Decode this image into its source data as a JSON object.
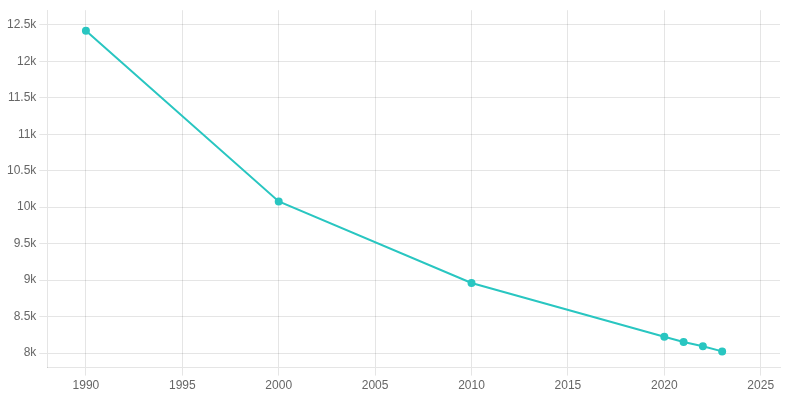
{
  "chart_data": {
    "type": "line",
    "x": [
      1990,
      2000,
      2010,
      2020,
      2021,
      2022,
      2023
    ],
    "values": [
      12417,
      10078,
      8960,
      8224,
      8152,
      8092,
      8022
    ],
    "color": "#29c6c1",
    "marker": "circle",
    "xlim": [
      1988.0,
      2026.0
    ],
    "xticks": [
      1990,
      1995,
      2000,
      2005,
      2010,
      2015,
      2020,
      2025
    ],
    "ylim": [
      7800,
      12700
    ],
    "yticks": [
      {
        "value": 8000,
        "label": "8k"
      },
      {
        "value": 8500,
        "label": "8.5k"
      },
      {
        "value": 9000,
        "label": "9k"
      },
      {
        "value": 9500,
        "label": "9.5k"
      },
      {
        "value": 10000,
        "label": "10k"
      },
      {
        "value": 10500,
        "label": "10.5k"
      },
      {
        "value": 11000,
        "label": "11k"
      },
      {
        "value": 11500,
        "label": "11.5k"
      },
      {
        "value": 12000,
        "label": "12k"
      },
      {
        "value": 12500,
        "label": "12.5k"
      }
    ],
    "grid": true
  }
}
